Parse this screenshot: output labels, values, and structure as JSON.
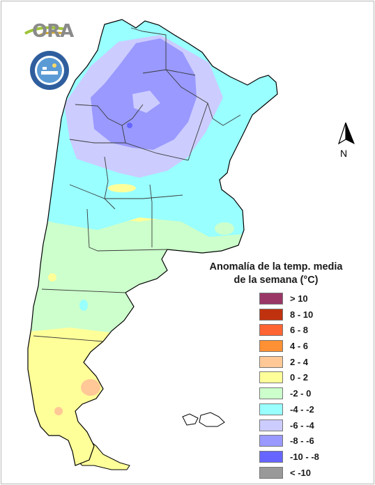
{
  "branding": {
    "ora_text": "ORA",
    "smn_seal": "SERVICIO METEOROLÓGICO NACIONAL · ARGENTINA"
  },
  "north_arrow": {
    "label": "N",
    "icon": "north-arrow-icon"
  },
  "legend": {
    "title_line1": "Anomalía de la temp. media",
    "title_line2": "de la semana (°C)",
    "items": [
      {
        "label": "> 10",
        "color": "#9b3767"
      },
      {
        "label": "8 - 10",
        "color": "#c0320e"
      },
      {
        "label": "6 - 8",
        "color": "#ff6433"
      },
      {
        "label": "4 - 6",
        "color": "#ff9033"
      },
      {
        "label": "2 - 4",
        "color": "#ffc896"
      },
      {
        "label": "0 - 2",
        "color": "#ffff9a"
      },
      {
        "label": "-2 - 0",
        "color": "#ccffcc"
      },
      {
        "label": "-4 - -2",
        "color": "#99ffff"
      },
      {
        "label": "-6 - -4",
        "color": "#ccccff"
      },
      {
        "label": "-8 - -6",
        "color": "#9999ff"
      },
      {
        "label": "-10 - -8",
        "color": "#6666ff"
      },
      {
        "label": "< -10",
        "color": "#999999"
      }
    ]
  },
  "colors": {
    "province_lines": "#3a3a3a",
    "map_outline": "#000000"
  }
}
